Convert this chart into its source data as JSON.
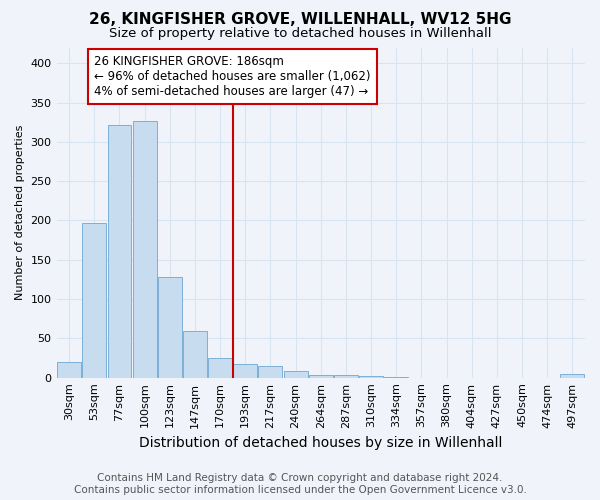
{
  "title": "26, KINGFISHER GROVE, WILLENHALL, WV12 5HG",
  "subtitle": "Size of property relative to detached houses in Willenhall",
  "xlabel": "Distribution of detached houses by size in Willenhall",
  "ylabel": "Number of detached properties",
  "bar_labels": [
    "30sqm",
    "53sqm",
    "77sqm",
    "100sqm",
    "123sqm",
    "147sqm",
    "170sqm",
    "193sqm",
    "217sqm",
    "240sqm",
    "264sqm",
    "287sqm",
    "310sqm",
    "334sqm",
    "357sqm",
    "380sqm",
    "404sqm",
    "427sqm",
    "450sqm",
    "474sqm",
    "497sqm"
  ],
  "bar_heights": [
    20,
    197,
    322,
    327,
    128,
    60,
    25,
    17,
    15,
    8,
    4,
    3,
    2,
    1,
    0,
    0,
    0,
    0,
    0,
    0,
    5
  ],
  "bar_color": "#c8dcf0",
  "bar_edgecolor": "#7ab0d8",
  "vline_x": 6.5,
  "vline_color": "#cc0000",
  "annotation_text": "26 KINGFISHER GROVE: 186sqm\n← 96% of detached houses are smaller (1,062)\n4% of semi-detached houses are larger (47) →",
  "annotation_box_color": "#ffffff",
  "annotation_box_edgecolor": "#cc0000",
  "ylim": [
    0,
    420
  ],
  "yticks": [
    0,
    50,
    100,
    150,
    200,
    250,
    300,
    350,
    400
  ],
  "footer_line1": "Contains HM Land Registry data © Crown copyright and database right 2024.",
  "footer_line2": "Contains public sector information licensed under the Open Government Licence v3.0.",
  "background_color": "#f0f4fa",
  "grid_color": "#d8e4f0",
  "title_fontsize": 11,
  "subtitle_fontsize": 9.5,
  "xlabel_fontsize": 10,
  "ylabel_fontsize": 8,
  "tick_fontsize": 8,
  "annotation_fontsize": 8.5,
  "footer_fontsize": 7.5
}
